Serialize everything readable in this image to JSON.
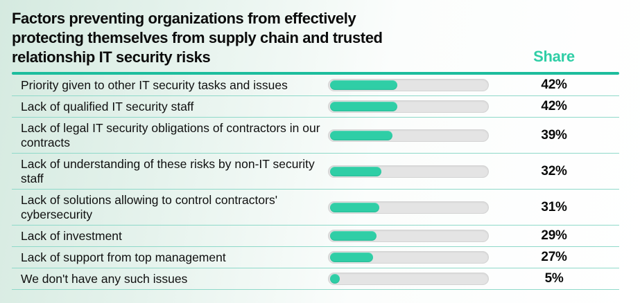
{
  "header": {
    "title_lines": [
      "Factors preventing organizations from effectively",
      "protecting themselves from supply chain and trusted",
      "relationship IT security risks"
    ],
    "share_label": "Share"
  },
  "chart_data": {
    "type": "bar",
    "orientation": "horizontal",
    "title": "Factors preventing organizations from effectively protecting themselves from supply chain and trusted relationship IT security risks",
    "value_column_label": "Share",
    "categories": [
      "Priority given to other IT security tasks and issues",
      "Lack of qualified IT security staff",
      "Lack of legal IT security obligations of contractors in our contracts",
      "Lack of understanding of these risks by non-IT security staff",
      "Lack of solutions allowing to control contractors' cybersecurity",
      "Lack of investment",
      "Lack of support from top management",
      "We don't have any such issues"
    ],
    "values": [
      42,
      42,
      39,
      32,
      31,
      29,
      27,
      5
    ],
    "value_labels": [
      "42%",
      "42%",
      "39%",
      "32%",
      "31%",
      "29%",
      "27%",
      "5%"
    ],
    "unit": "%",
    "xlim": [
      0,
      100
    ],
    "grid": false,
    "legend": false
  },
  "colors": {
    "accent_teal": "#2fcea6",
    "rule_teal": "#1dbd9d",
    "divider_teal": "#8ed9c9",
    "track_gray": "#e4e4e4",
    "text_black": "#0b0b0b"
  }
}
